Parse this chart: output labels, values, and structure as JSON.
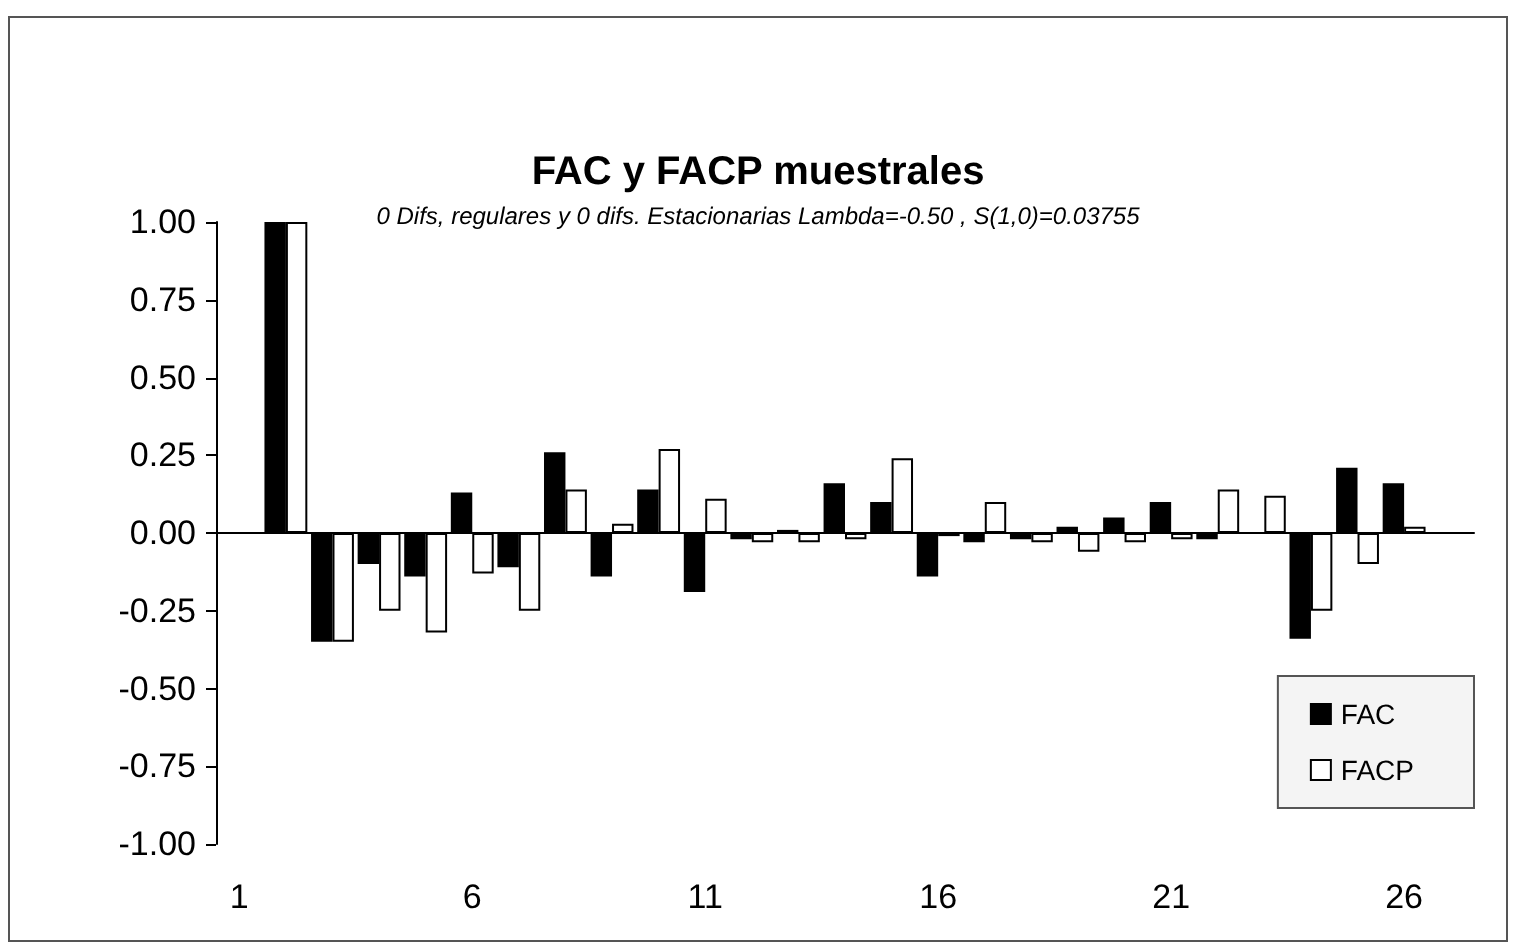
{
  "chart_data": {
    "type": "bar",
    "title": "FAC y FACP muestrales",
    "subtitle": "0 Difs, regulares y 0 difs. Estacionarias Lambda=-0.50 , S(1,0)=0.03755",
    "categories": [
      "1",
      null,
      null,
      null,
      null,
      "6",
      null,
      null,
      null,
      null,
      "11",
      null,
      null,
      null,
      null,
      "16",
      null,
      null,
      null,
      null,
      "21",
      null,
      null,
      null,
      null,
      "26",
      null
    ],
    "series": [
      {
        "name": "FAC",
        "color": "#000000",
        "values": [
          null,
          1.0,
          -0.35,
          -0.1,
          -0.14,
          0.13,
          -0.11,
          0.26,
          -0.14,
          0.14,
          -0.19,
          -0.02,
          0.01,
          0.16,
          0.1,
          -0.14,
          -0.03,
          -0.02,
          0.02,
          0.05,
          0.1,
          -0.02,
          0.0,
          -0.34,
          0.21,
          0.16,
          null
        ]
      },
      {
        "name": "FACP",
        "color": "#ffffff",
        "values": [
          null,
          1.0,
          -0.35,
          -0.25,
          -0.32,
          -0.13,
          -0.25,
          0.14,
          0.03,
          0.27,
          0.11,
          -0.03,
          -0.03,
          -0.02,
          0.24,
          -0.01,
          0.1,
          -0.03,
          -0.06,
          -0.03,
          -0.02,
          0.14,
          0.12,
          -0.25,
          -0.1,
          0.02,
          null
        ]
      }
    ],
    "ylim": [
      -1,
      1
    ],
    "yticks": [
      {
        "value": -1,
        "label": "-1.00"
      },
      {
        "value": -0.75,
        "label": "-0.75"
      },
      {
        "value": -0.5,
        "label": "-0.50"
      },
      {
        "value": -0.25,
        "label": "-0.25"
      },
      {
        "value": 0,
        "label": "0.00"
      },
      {
        "value": 0.25,
        "label": "0.25"
      },
      {
        "value": 0.5,
        "label": "0.50"
      },
      {
        "value": 0.75,
        "label": "0.75"
      },
      {
        "value": 1,
        "label": "1.00"
      }
    ],
    "legend": "bottom right"
  }
}
